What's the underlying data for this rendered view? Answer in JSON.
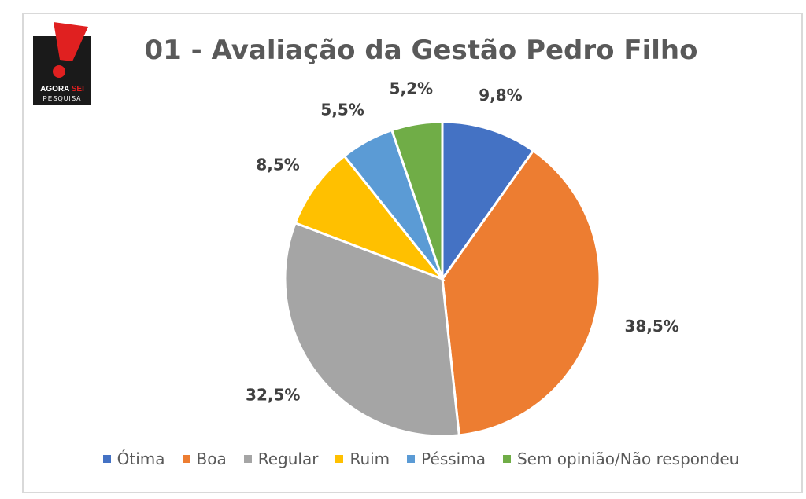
{
  "logo": {
    "line1a": "AGORA",
    "line1b": "SEI",
    "line2": "PESQUISA"
  },
  "chart_data": {
    "type": "pie",
    "title": "01 - Avaliação da Gestão Pedro Filho",
    "categories": [
      "Ótima",
      "Boa",
      "Regular",
      "Ruim",
      "Péssima",
      "Sem opinião/Não respondeu"
    ],
    "values": [
      9.8,
      38.5,
      32.5,
      8.5,
      5.5,
      5.2
    ],
    "labels": [
      "9,8%",
      "38,5%",
      "32,5%",
      "8,5%",
      "5,5%",
      "5,2%"
    ],
    "colors": [
      "#4472c4",
      "#ed7d31",
      "#a5a5a5",
      "#ffc000",
      "#5b9bd5",
      "#70ad47"
    ],
    "legend_position": "bottom"
  }
}
